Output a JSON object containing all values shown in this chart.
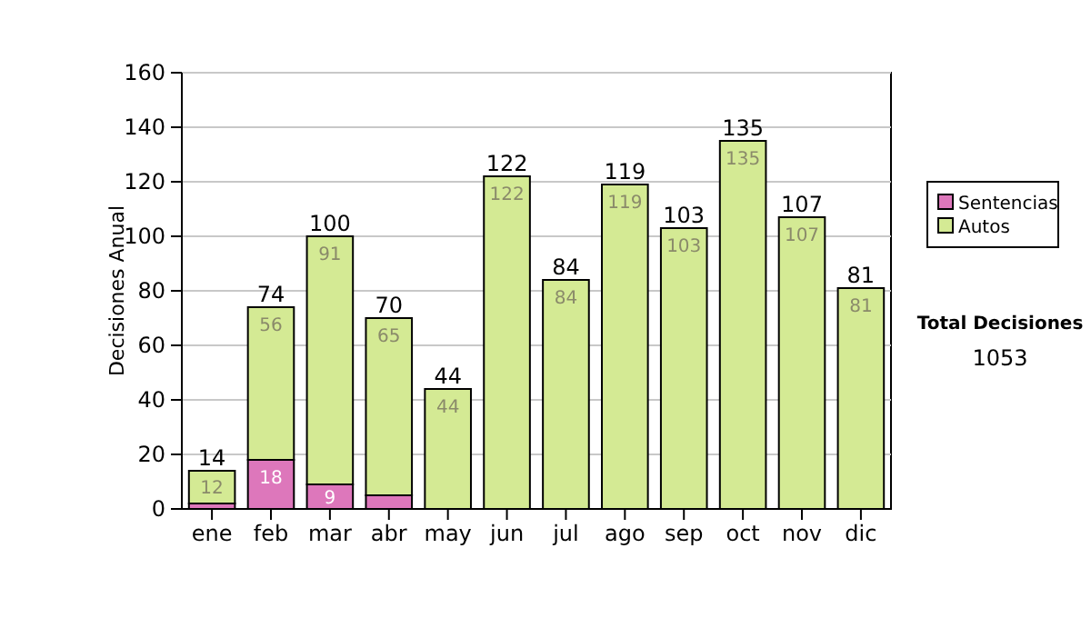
{
  "chart_data": {
    "type": "bar",
    "stacked": true,
    "ylabel": "Decisiones Anual",
    "categories": [
      "ene",
      "feb",
      "mar",
      "abr",
      "may",
      "jun",
      "jul",
      "ago",
      "sep",
      "oct",
      "nov",
      "dic"
    ],
    "series": [
      {
        "name": "Sentencias",
        "color": "#dd77bb",
        "values": [
          2,
          18,
          9,
          5,
          0,
          0,
          0,
          0,
          0,
          0,
          0,
          0
        ],
        "value_labels": [
          null,
          "18",
          "9",
          null,
          null,
          null,
          null,
          null,
          null,
          null,
          null,
          null
        ]
      },
      {
        "name": "Autos",
        "color": "#d4ea94",
        "values": [
          12,
          56,
          91,
          65,
          44,
          122,
          84,
          119,
          103,
          135,
          107,
          81
        ],
        "value_labels": [
          "12",
          "56",
          "91",
          "65",
          "44",
          "122",
          "84",
          "119",
          "103",
          "135",
          "107",
          "81"
        ]
      }
    ],
    "totals": [
      "14",
      "74",
      "100",
      "70",
      "44",
      "122",
      "84",
      "119",
      "103",
      "135",
      "107",
      "81"
    ],
    "ylim": [
      0,
      160
    ],
    "yticks": [
      0,
      20,
      40,
      60,
      80,
      100,
      120,
      140,
      160
    ],
    "grid": "y",
    "legend": "right",
    "annotations": [
      "Total Decisiones",
      "1053"
    ]
  }
}
